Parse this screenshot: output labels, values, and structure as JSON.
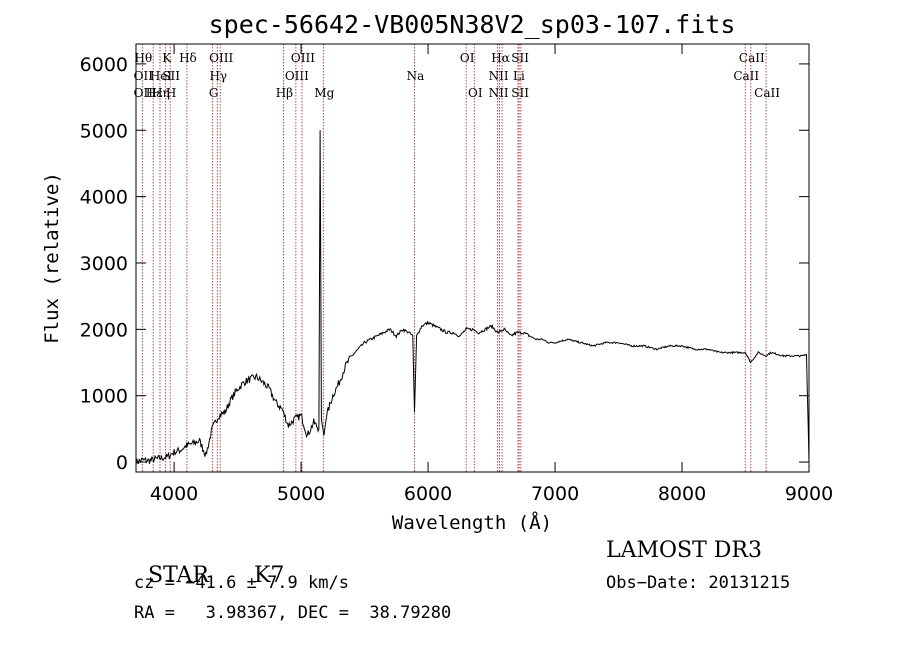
{
  "chart_data": {
    "type": "line",
    "title": "spec-56642-VB005N38V2_sp03-107.fits",
    "xlabel": "Wavelength (Å)",
    "ylabel": "Flux (relative)",
    "xlim": [
      3700,
      9000
    ],
    "ylim": [
      -150,
      6300
    ],
    "xticks": [
      4000,
      5000,
      6000,
      7000,
      8000,
      9000
    ],
    "yticks": [
      0,
      1000,
      2000,
      3000,
      4000,
      5000,
      6000
    ],
    "grid": false,
    "series": [
      {
        "values_description": "spectrum flux",
        "x": [
          3700,
          3750,
          3800,
          3850,
          3900,
          3950,
          4000,
          4050,
          4100,
          4150,
          4200,
          4250,
          4300,
          4350,
          4400,
          4450,
          4500,
          4550,
          4600,
          4650,
          4700,
          4750,
          4800,
          4850,
          4900,
          4950,
          5000,
          5050,
          5100,
          5140,
          5150,
          5160,
          5180,
          5200,
          5250,
          5300,
          5350,
          5400,
          5450,
          5500,
          5550,
          5600,
          5650,
          5700,
          5750,
          5800,
          5850,
          5880,
          5893,
          5910,
          5950,
          6000,
          6050,
          6100,
          6150,
          6200,
          6250,
          6300,
          6350,
          6400,
          6450,
          6500,
          6550,
          6600,
          6650,
          6700,
          6750,
          6800,
          6850,
          6900,
          6950,
          7000,
          7100,
          7200,
          7300,
          7400,
          7500,
          7600,
          7700,
          7800,
          7900,
          8000,
          8100,
          8200,
          8300,
          8400,
          8500,
          8540,
          8600,
          8660,
          8700,
          8800,
          8900,
          8950,
          8980,
          9000
        ],
        "y": [
          0,
          30,
          20,
          40,
          60,
          80,
          150,
          180,
          250,
          280,
          320,
          100,
          500,
          700,
          750,
          950,
          1100,
          1200,
          1250,
          1280,
          1200,
          1100,
          900,
          800,
          550,
          650,
          700,
          400,
          600,
          500,
          5000,
          650,
          400,
          700,
          1000,
          1200,
          1450,
          1600,
          1700,
          1800,
          1850,
          1900,
          1950,
          2000,
          1900,
          2000,
          1950,
          1900,
          750,
          1900,
          2050,
          2100,
          2050,
          2000,
          1950,
          1950,
          1900,
          2000,
          2000,
          1950,
          2000,
          2050,
          1950,
          2000,
          1900,
          1950,
          1950,
          1900,
          1850,
          1850,
          1800,
          1800,
          1850,
          1800,
          1750,
          1800,
          1800,
          1750,
          1750,
          1700,
          1750,
          1750,
          1700,
          1700,
          1650,
          1650,
          1650,
          1500,
          1650,
          1600,
          1650,
          1600,
          1600,
          1600,
          1620,
          0
        ]
      }
    ],
    "lines": [
      {
        "wl": 3750,
        "labels": [
          "Hθ",
          "OII",
          "OII"
        ],
        "levels": [
          0,
          1,
          2
        ]
      },
      {
        "wl": 3835,
        "labels": [
          "",
          "",
          "Hε"
        ],
        "levels": [
          0,
          1,
          2
        ]
      },
      {
        "wl": 3889,
        "labels": [
          "",
          "HeI",
          "Hη"
        ],
        "levels": [
          0,
          1,
          2
        ]
      },
      {
        "wl": 3934,
        "labels": [
          "K",
          "",
          ""
        ],
        "levels": [
          0,
          1,
          2
        ]
      },
      {
        "wl": 3969,
        "labels": [
          "",
          "SII",
          "H"
        ],
        "levels": [
          0,
          1,
          2
        ]
      },
      {
        "wl": 4101,
        "labels": [
          "Hδ",
          "",
          ""
        ],
        "levels": [
          0,
          1,
          2
        ]
      },
      {
        "wl": 4304,
        "labels": [
          "",
          "",
          "G"
        ],
        "levels": [
          0,
          1,
          2
        ]
      },
      {
        "wl": 4340,
        "labels": [
          "",
          "Hγ",
          ""
        ],
        "levels": [
          0,
          1,
          2
        ]
      },
      {
        "wl": 4363,
        "labels": [
          "OIII",
          "",
          ""
        ],
        "levels": [
          0,
          1,
          2
        ]
      },
      {
        "wl": 4861,
        "labels": [
          "",
          "",
          "Hβ"
        ],
        "levels": [
          0,
          1,
          2
        ]
      },
      {
        "wl": 4959,
        "labels": [
          "",
          "OIII",
          ""
        ],
        "levels": [
          0,
          1,
          2
        ]
      },
      {
        "wl": 5007,
        "labels": [
          "OIII",
          "",
          ""
        ],
        "levels": [
          0,
          1,
          2
        ]
      },
      {
        "wl": 5175,
        "labels": [
          "",
          "",
          "Mg"
        ],
        "levels": [
          0,
          1,
          2
        ]
      },
      {
        "wl": 5893,
        "labels": [
          "",
          "Na",
          ""
        ],
        "levels": [
          0,
          1,
          2
        ]
      },
      {
        "wl": 6300,
        "labels": [
          "OI",
          "",
          ""
        ],
        "levels": [
          0,
          1,
          2
        ]
      },
      {
        "wl": 6364,
        "labels": [
          "",
          "",
          "OI"
        ],
        "levels": [
          0,
          1,
          2
        ]
      },
      {
        "wl": 6548,
        "labels": [
          "",
          "NII",
          "NII"
        ],
        "levels": [
          0,
          1,
          2
        ]
      },
      {
        "wl": 6563,
        "labels": [
          "Hα",
          "",
          ""
        ],
        "levels": [
          0,
          1,
          2
        ]
      },
      {
        "wl": 6583,
        "labels": [
          "",
          "",
          ""
        ],
        "levels": [
          0,
          1,
          2
        ]
      },
      {
        "wl": 6708,
        "labels": [
          "",
          "Li",
          ""
        ],
        "levels": [
          0,
          1,
          2
        ]
      },
      {
        "wl": 6717,
        "labels": [
          "SII",
          "",
          "SII"
        ],
        "levels": [
          0,
          1,
          2
        ]
      },
      {
        "wl": 6731,
        "labels": [
          "",
          "",
          ""
        ],
        "levels": [
          0,
          1,
          2
        ]
      },
      {
        "wl": 8498,
        "labels": [
          "",
          "CaII",
          ""
        ],
        "levels": [
          0,
          1,
          2
        ]
      },
      {
        "wl": 8542,
        "labels": [
          "CaII",
          "",
          ""
        ],
        "levels": [
          0,
          1,
          2
        ]
      },
      {
        "wl": 8662,
        "labels": [
          "",
          "",
          "CaII"
        ],
        "levels": [
          0,
          1,
          2
        ]
      }
    ],
    "line_color": "#a02020"
  },
  "info": {
    "class_label": "STAR",
    "subclass": "K7",
    "cz": "cz = −41.6 ± 7.9 km/s",
    "coords": "RA =   3.98367, DEC =  38.79280",
    "survey": "LAMOST DR3",
    "obs_date": "Obs−Date: 20131215"
  }
}
